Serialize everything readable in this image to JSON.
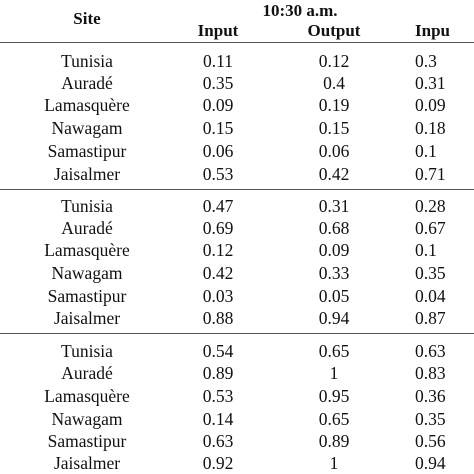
{
  "header": {
    "site_label": "Site",
    "time_label": "10:30 a.m.",
    "col_input_1": "Input",
    "col_output_1": "Output",
    "col_input_2_partial": "Inpu"
  },
  "groups": [
    {
      "rows": [
        {
          "site": "Tunisia",
          "input": "0.11",
          "output": "0.12",
          "input2": "0.3"
        },
        {
          "site": "Auradé",
          "input": "0.35",
          "output": "0.4",
          "input2": "0.31"
        },
        {
          "site": "Lamasquère",
          "input": "0.09",
          "output": "0.19",
          "input2": "0.09"
        },
        {
          "site": "Nawagam",
          "input": "0.15",
          "output": "0.15",
          "input2": "0.18"
        },
        {
          "site": "Samastipur",
          "input": "0.06",
          "output": "0.06",
          "input2": "0.1"
        },
        {
          "site": "Jaisalmer",
          "input": "0.53",
          "output": "0.42",
          "input2": "0.71"
        }
      ]
    },
    {
      "rows": [
        {
          "site": "Tunisia",
          "input": "0.47",
          "output": "0.31",
          "input2": "0.28"
        },
        {
          "site": "Auradé",
          "input": "0.69",
          "output": "0.68",
          "input2": "0.67"
        },
        {
          "site": "Lamasquère",
          "input": "0.12",
          "output": "0.09",
          "input2": "0.1"
        },
        {
          "site": "Nawagam",
          "input": "0.42",
          "output": "0.33",
          "input2": "0.35"
        },
        {
          "site": "Samastipur",
          "input": "0.03",
          "output": "0.05",
          "input2": "0.04"
        },
        {
          "site": "Jaisalmer",
          "input": "0.88",
          "output": "0.94",
          "input2": "0.87"
        }
      ]
    },
    {
      "rows": [
        {
          "site": "Tunisia",
          "input": "0.54",
          "output": "0.65",
          "input2": "0.63"
        },
        {
          "site": "Auradé",
          "input": "0.89",
          "output": "1",
          "input2": "0.83"
        },
        {
          "site": "Lamasquère",
          "input": "0.53",
          "output": "0.95",
          "input2": "0.36"
        },
        {
          "site": "Nawagam",
          "input": "0.14",
          "output": "0.65",
          "input2": "0.35"
        },
        {
          "site": "Samastipur",
          "input": "0.63",
          "output": "0.89",
          "input2": "0.56"
        },
        {
          "site": "Jaisalmer",
          "input": "0.92",
          "output": "1",
          "input2": "0.94"
        }
      ]
    }
  ]
}
